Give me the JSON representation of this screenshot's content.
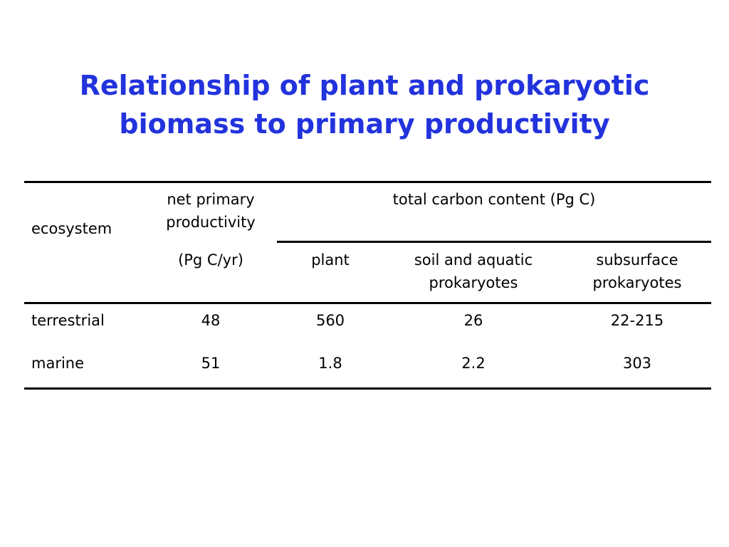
{
  "slide": {
    "title_lines": [
      "Relationship of plant and prokaryotic",
      "biomass to primary productivity"
    ]
  },
  "table": {
    "header": {
      "ecosystem": "ecosystem",
      "npp_lines": [
        "net primary",
        "productivity"
      ],
      "npp_unit": "(Pg C/yr)",
      "total_carbon": "total carbon content (Pg C)",
      "plant": "plant",
      "soil_lines": [
        "soil and aquatic",
        "prokaryotes"
      ],
      "subsurface_lines": [
        "subsurface",
        "prokaryotes"
      ]
    },
    "rows": [
      {
        "ecosystem": "terrestrial",
        "npp": "48",
        "plant": "560",
        "soil_aquatic": "26",
        "subsurface": "22-215"
      },
      {
        "ecosystem": "marine",
        "npp": "51",
        "plant": "1.8",
        "soil_aquatic": "2.2",
        "subsurface": "303"
      }
    ]
  },
  "colors": {
    "title": "#2233dd",
    "text": "#000000",
    "rules": "#000000",
    "background": "#ffffff"
  }
}
